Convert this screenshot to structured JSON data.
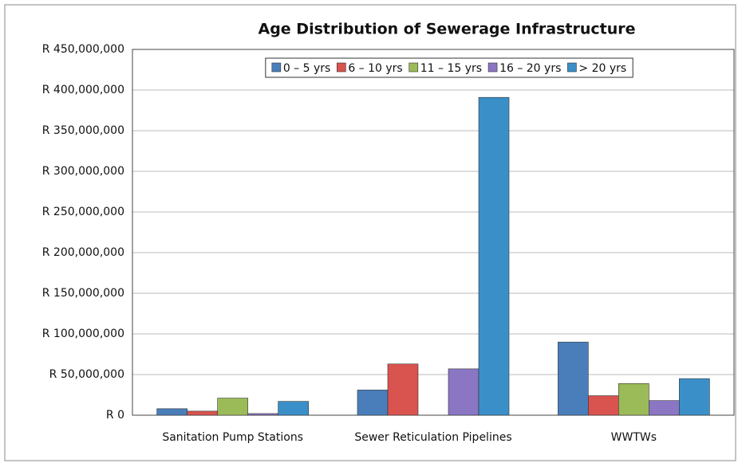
{
  "chart_data": {
    "type": "bar",
    "title": "Age Distribution of Sewerage Infrastructure",
    "categories": [
      "Sanitation Pump Stations",
      "Sewer Reticulation Pipelines",
      "WWTWs"
    ],
    "series": [
      {
        "name": "0 – 5 yrs",
        "color": "#4a7ebb",
        "values": [
          8000000,
          31000000,
          90000000
        ]
      },
      {
        "name": "6 – 10 yrs",
        "color": "#d9534f",
        "values": [
          5000000,
          63000000,
          24000000
        ]
      },
      {
        "name": "11 – 15 yrs",
        "color": "#9bbb59",
        "values": [
          21000000,
          0,
          39000000
        ]
      },
      {
        "name": "16 – 20 yrs",
        "color": "#8a76c2",
        "values": [
          2000000,
          57000000,
          18000000
        ]
      },
      {
        "name": "> 20 yrs",
        "color": "#3a8fc8",
        "values": [
          17000000,
          391000000,
          45000000
        ]
      }
    ],
    "ylim": [
      0,
      450000000
    ],
    "yticks": [
      {
        "value": 0,
        "label": "R 0"
      },
      {
        "value": 50000000,
        "label": "R 50,000,000"
      },
      {
        "value": 100000000,
        "label": "R 100,000,000"
      },
      {
        "value": 150000000,
        "label": "R 150,000,000"
      },
      {
        "value": 200000000,
        "label": "R 200,000,000"
      },
      {
        "value": 250000000,
        "label": "R 250,000,000"
      },
      {
        "value": 300000000,
        "label": "R 300,000,000"
      },
      {
        "value": 350000000,
        "label": "R 350,000,000"
      },
      {
        "value": 400000000,
        "label": "R 400,000,000"
      },
      {
        "value": 450000000,
        "label": "R 450,000,000"
      }
    ],
    "grid": true,
    "legend": "top"
  }
}
